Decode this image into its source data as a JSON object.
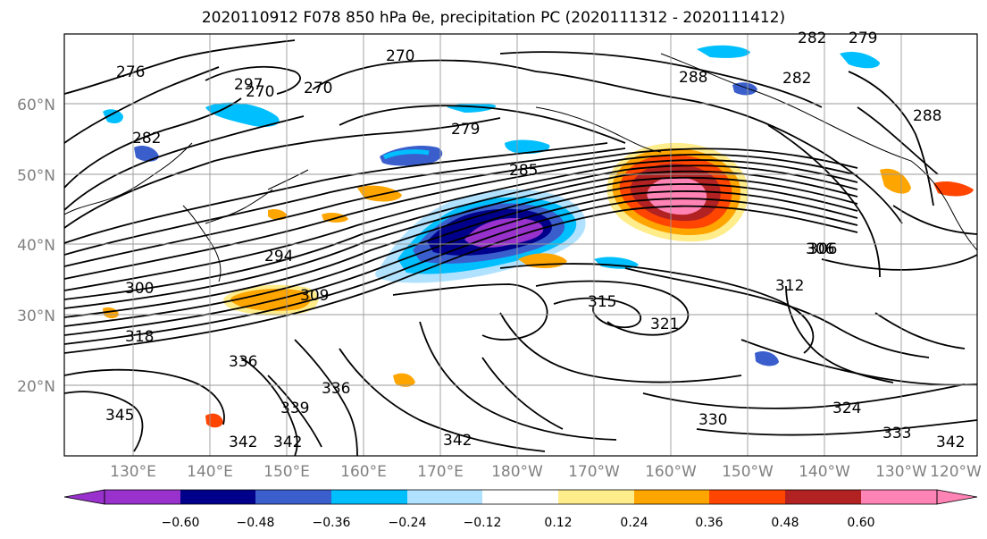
{
  "title": "2020110912 F078 850 hPa θe, precipitation PC (2020111312 - 2020111412)",
  "map": {
    "lat_labels": [
      "60°N",
      "50°N",
      "40°N",
      "30°N",
      "20°N"
    ],
    "lon_labels": [
      "130°E",
      "140°E",
      "150°E",
      "160°E",
      "170°E",
      "180°W",
      "170°W",
      "160°W",
      "150°W",
      "140°W",
      "130°W",
      "120°W"
    ],
    "contour_labels": [
      "276",
      "270",
      "297",
      "270",
      "270",
      "279",
      "282",
      "288",
      "282",
      "279",
      "288",
      "282",
      "294",
      "306",
      "309",
      "300",
      "318",
      "315",
      "312",
      "306",
      "321",
      "336",
      "336",
      "339",
      "345",
      "342",
      "342",
      "342",
      "330",
      "324",
      "333",
      "342",
      "285"
    ],
    "precip_anomalies": [
      {
        "name": "negative-core-central-pacific",
        "sign": "negative"
      },
      {
        "name": "positive-core-gulf-of-alaska",
        "sign": "positive"
      },
      {
        "name": "positive-band-south-of-japan",
        "sign": "positive"
      }
    ]
  },
  "colorbar": {
    "colors": [
      "#9932CC",
      "#00008B",
      "#3A5FCD",
      "#00BFFF",
      "#B0E2FF",
      "#FFFFFF",
      "#FFEC8B",
      "#FFA500",
      "#FF4500",
      "#B22222",
      "#FF83B4",
      "#FF83B4"
    ],
    "extend_min_color": "#9932CC",
    "extend_max_color": "#FF83B4",
    "tick_labels": [
      "−0.60",
      "−0.48",
      "−0.36",
      "−0.24",
      "−0.12",
      "0.12",
      "0.24",
      "0.36",
      "0.48",
      "0.60"
    ]
  }
}
